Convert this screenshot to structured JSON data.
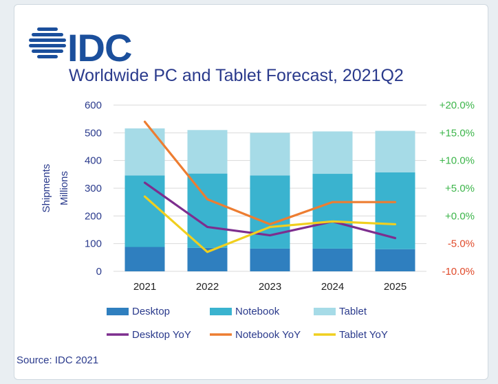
{
  "logo": {
    "text": "IDC"
  },
  "source": "Source: IDC 2021",
  "colors": {
    "desktop": "#2f7fbf",
    "notebook": "#3ab3cf",
    "tablet": "#a6dbe7",
    "desktop_yoy": "#7d2e8e",
    "notebook_yoy": "#ed7d31",
    "tablet_yoy": "#f0cf1f",
    "left_axis": "#2a3a8c",
    "right_pos": "#3cb54a",
    "right_neg": "#e04a2a"
  },
  "chart_data": {
    "type": "bar",
    "title": "Worldwide PC and Tablet Forecast, 2021Q2",
    "categories": [
      "2021",
      "2022",
      "2023",
      "2024",
      "2025"
    ],
    "ylabel": [
      "Shipments",
      "Millions"
    ],
    "ylim": [
      0,
      600
    ],
    "yticks": [
      "600",
      "500",
      "400",
      "300",
      "200",
      "100",
      "0"
    ],
    "y2ticks": [
      "+20.0%",
      "+15.0%",
      "+10.0%",
      "+5.0%",
      "+0.0%",
      "-5.0%",
      "-10.0%"
    ],
    "y2lim": [
      -10,
      20
    ],
    "stacked": true,
    "series": [
      {
        "name": "Desktop",
        "kind": "bar",
        "values": [
          88,
          85,
          82,
          82,
          80
        ]
      },
      {
        "name": "Notebook",
        "kind": "bar",
        "values": [
          258,
          268,
          264,
          270,
          277
        ]
      },
      {
        "name": "Tablet",
        "kind": "bar",
        "values": [
          170,
          157,
          154,
          153,
          150
        ]
      },
      {
        "name": "Desktop YoY",
        "kind": "line",
        "axis": "right",
        "values": [
          6.0,
          -2.0,
          -3.5,
          -1.0,
          -4.0
        ]
      },
      {
        "name": "Notebook YoY",
        "kind": "line",
        "axis": "right",
        "values": [
          17.0,
          3.0,
          -1.5,
          2.5,
          2.5
        ]
      },
      {
        "name": "Tablet YoY",
        "kind": "line",
        "axis": "right",
        "values": [
          3.5,
          -6.5,
          -2.0,
          -1.0,
          -1.5
        ]
      }
    ],
    "legend": [
      {
        "label": "Desktop",
        "type": "box",
        "color": "desktop"
      },
      {
        "label": "Notebook",
        "type": "box",
        "color": "notebook"
      },
      {
        "label": "Tablet",
        "type": "box",
        "color": "tablet"
      },
      {
        "label": "Desktop YoY",
        "type": "line",
        "color": "desktop_yoy"
      },
      {
        "label": "Notebook YoY",
        "type": "line",
        "color": "notebook_yoy"
      },
      {
        "label": "Tablet YoY",
        "type": "line",
        "color": "tablet_yoy"
      }
    ]
  }
}
